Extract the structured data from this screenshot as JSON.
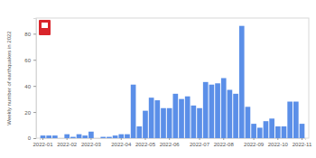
{
  "chart_data": {
    "type": "bar",
    "y_label": "Weekly number of earthquakes in 2022",
    "categories": [
      "2022-01",
      null,
      null,
      null,
      "2022-02",
      null,
      null,
      null,
      "2022-03",
      null,
      null,
      null,
      null,
      "2022-04",
      null,
      null,
      null,
      "2022-05",
      null,
      null,
      null,
      "2022-06",
      null,
      null,
      null,
      null,
      "2022-07",
      null,
      null,
      null,
      "2022-08",
      null,
      null,
      null,
      null,
      "2022-09",
      null,
      null,
      null,
      "2022-10",
      null,
      null,
      null,
      "2022-11"
    ],
    "values": [
      2,
      2,
      2,
      0,
      3,
      1,
      3,
      2,
      5,
      0,
      1,
      1,
      2,
      3,
      3,
      41,
      9,
      21,
      31,
      29,
      23,
      23,
      34,
      30,
      32,
      25,
      23,
      43,
      41,
      42,
      46,
      37,
      34,
      86,
      24,
      11,
      8,
      13,
      15,
      9,
      9,
      28,
      28,
      11
    ],
    "color": "#5b8fe8",
    "ylim": [
      0,
      92
    ],
    "yticks": [
      0,
      20,
      40,
      60,
      80
    ],
    "grid": false
  }
}
